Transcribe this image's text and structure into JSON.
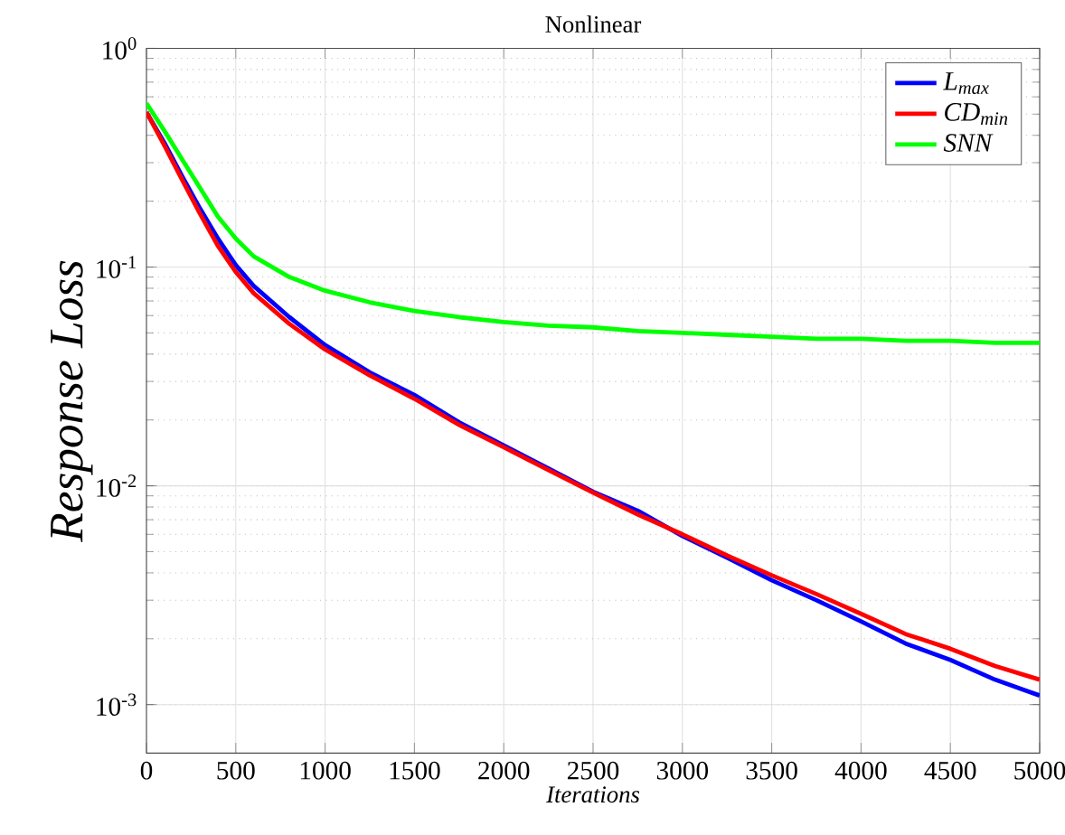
{
  "chart_data": {
    "type": "line",
    "title": "Nonlinear",
    "xlabel": "Iterations",
    "ylabel": "Response Loss",
    "x": [
      0,
      100,
      200,
      300,
      400,
      500,
      600,
      800,
      1000,
      1250,
      1500,
      1750,
      2000,
      2250,
      2500,
      2750,
      3000,
      3250,
      3500,
      3750,
      4000,
      4250,
      4500,
      4750,
      5000
    ],
    "series": [
      {
        "name": "L$_{max}$",
        "color": "#0000ff",
        "values": [
          0.51,
          0.37,
          0.26,
          0.185,
          0.135,
          0.102,
          0.082,
          0.059,
          0.044,
          0.033,
          0.026,
          0.0195,
          0.0153,
          0.012,
          0.0094,
          0.0077,
          0.0059,
          0.0047,
          0.0037,
          0.003,
          0.0024,
          0.0019,
          0.0016,
          0.0013,
          0.0011
        ]
      },
      {
        "name": "CD$_{min}$",
        "color": "#ff0000",
        "values": [
          0.51,
          0.36,
          0.25,
          0.175,
          0.125,
          0.095,
          0.076,
          0.055,
          0.042,
          0.032,
          0.025,
          0.019,
          0.015,
          0.0118,
          0.0093,
          0.0074,
          0.006,
          0.0048,
          0.0039,
          0.0032,
          0.0026,
          0.0021,
          0.0018,
          0.0015,
          0.0013
        ]
      },
      {
        "name": "SNN",
        "color": "#00ff00",
        "values": [
          0.56,
          0.42,
          0.31,
          0.23,
          0.17,
          0.135,
          0.112,
          0.09,
          0.078,
          0.069,
          0.063,
          0.059,
          0.056,
          0.054,
          0.053,
          0.051,
          0.05,
          0.049,
          0.048,
          0.047,
          0.047,
          0.046,
          0.046,
          0.045,
          0.045
        ]
      }
    ],
    "xlim": [
      0,
      5000
    ],
    "ylim": [
      0.0006,
      1
    ],
    "xticks": [
      0,
      500,
      1000,
      1500,
      2000,
      2500,
      3000,
      3500,
      4000,
      4500,
      5000
    ],
    "yticks": [
      {
        "value": 0.001,
        "label": "10$^{-3}$"
      },
      {
        "value": 0.01,
        "label": "10$^{-2}$"
      },
      {
        "value": 0.1,
        "label": "10$^{-1}$"
      },
      {
        "value": 1,
        "label": "10$^{0}$"
      }
    ],
    "log": "y",
    "grid": true,
    "legend": "top right"
  }
}
